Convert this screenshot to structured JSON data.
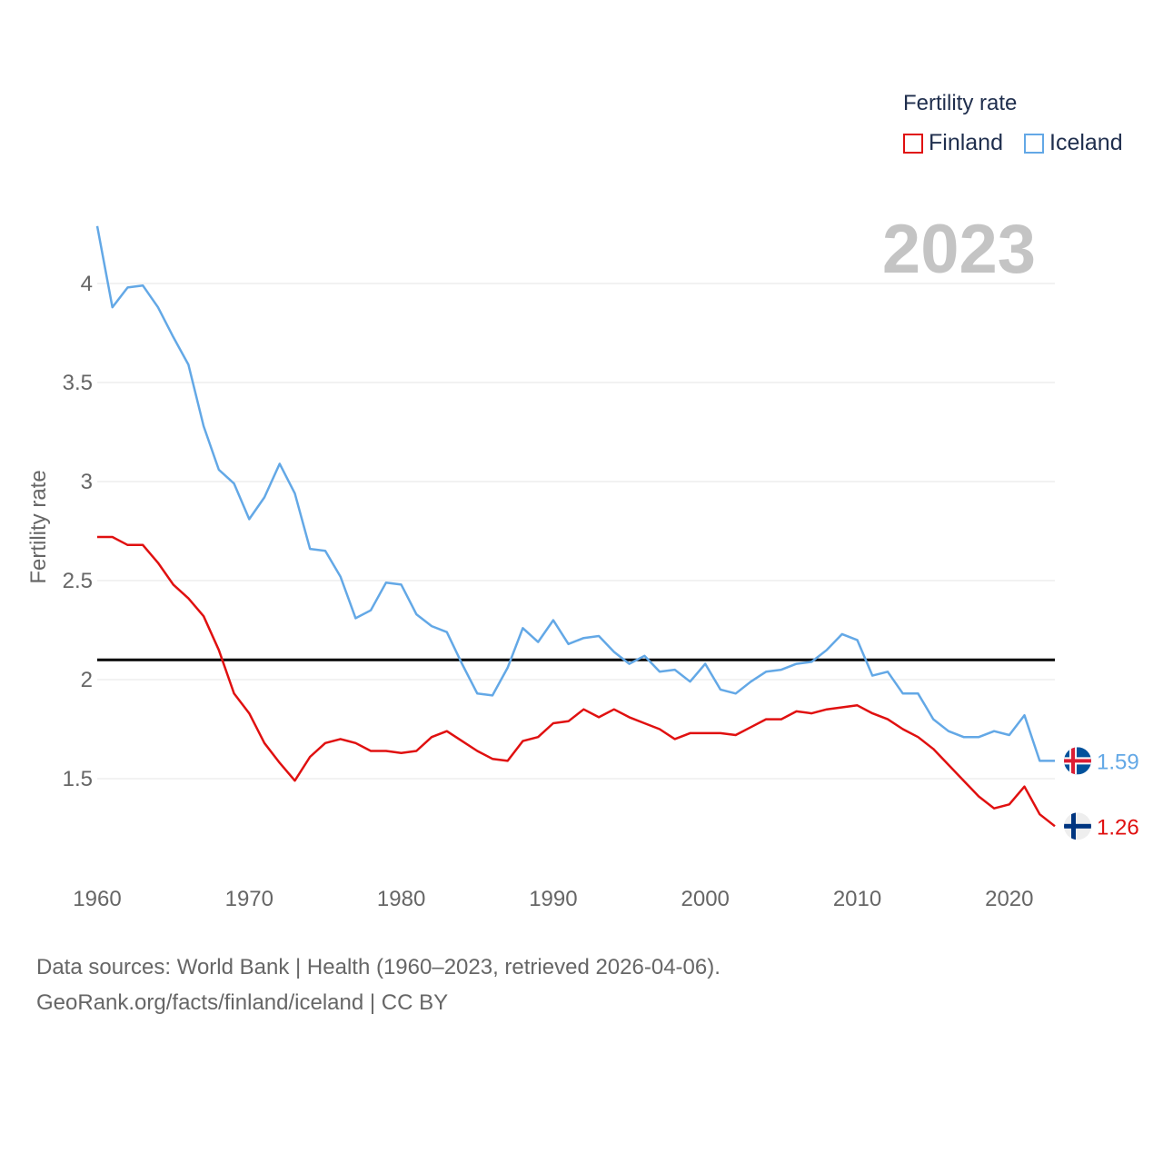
{
  "legend": {
    "title": "Fertility rate",
    "items": [
      {
        "label": "Finland",
        "color": "#e01010"
      },
      {
        "label": "Iceland",
        "color": "#63a8e6"
      }
    ]
  },
  "year_label": "2023",
  "footer": {
    "line1": "Data sources: World Bank | Health (1960–2023, retrieved 2026-04-06).",
    "line2": "GeoRank.org/facts/finland/iceland | CC BY"
  },
  "chart_data": {
    "type": "line",
    "ylabel": "Fertility rate",
    "xlabel": "",
    "xlim": [
      1960,
      2023
    ],
    "ylim": [
      1.2,
      4.3
    ],
    "x_ticks": [
      1960,
      1970,
      1980,
      1990,
      2000,
      2010,
      2020
    ],
    "y_ticks": [
      1.5,
      2,
      2.5,
      3,
      3.5,
      4
    ],
    "y_tick_labels": [
      "1.5",
      "2",
      "2.5",
      "3",
      "3.5",
      "4"
    ],
    "reference_line": 2.1,
    "x": [
      1960,
      1961,
      1962,
      1963,
      1964,
      1965,
      1966,
      1967,
      1968,
      1969,
      1970,
      1971,
      1972,
      1973,
      1974,
      1975,
      1976,
      1977,
      1978,
      1979,
      1980,
      1981,
      1982,
      1983,
      1984,
      1985,
      1986,
      1987,
      1988,
      1989,
      1990,
      1991,
      1992,
      1993,
      1994,
      1995,
      1996,
      1997,
      1998,
      1999,
      2000,
      2001,
      2002,
      2003,
      2004,
      2005,
      2006,
      2007,
      2008,
      2009,
      2010,
      2011,
      2012,
      2013,
      2014,
      2015,
      2016,
      2017,
      2018,
      2019,
      2020,
      2021,
      2022,
      2023
    ],
    "series": [
      {
        "name": "Finland",
        "color": "#e01010",
        "end_label": "1.26",
        "values": [
          2.72,
          2.72,
          2.68,
          2.68,
          2.59,
          2.48,
          2.41,
          2.32,
          2.15,
          1.93,
          1.83,
          1.68,
          1.58,
          1.49,
          1.61,
          1.68,
          1.7,
          1.68,
          1.64,
          1.64,
          1.63,
          1.64,
          1.71,
          1.74,
          1.69,
          1.64,
          1.6,
          1.59,
          1.69,
          1.71,
          1.78,
          1.79,
          1.85,
          1.81,
          1.85,
          1.81,
          1.78,
          1.75,
          1.7,
          1.73,
          1.73,
          1.73,
          1.72,
          1.76,
          1.8,
          1.8,
          1.84,
          1.83,
          1.85,
          1.86,
          1.87,
          1.83,
          1.8,
          1.75,
          1.71,
          1.65,
          1.57,
          1.49,
          1.41,
          1.35,
          1.37,
          1.46,
          1.32,
          1.26
        ]
      },
      {
        "name": "Iceland",
        "color": "#63a8e6",
        "end_label": "1.59",
        "values": [
          4.29,
          3.88,
          3.98,
          3.99,
          3.88,
          3.73,
          3.59,
          3.28,
          3.06,
          2.99,
          2.81,
          2.92,
          3.09,
          2.94,
          2.66,
          2.65,
          2.52,
          2.31,
          2.35,
          2.49,
          2.48,
          2.33,
          2.27,
          2.24,
          2.08,
          1.93,
          1.92,
          2.06,
          2.26,
          2.19,
          2.3,
          2.18,
          2.21,
          2.22,
          2.14,
          2.08,
          2.12,
          2.04,
          2.05,
          1.99,
          2.08,
          1.95,
          1.93,
          1.99,
          2.04,
          2.05,
          2.08,
          2.09,
          2.15,
          2.23,
          2.2,
          2.02,
          2.04,
          1.93,
          1.93,
          1.8,
          1.74,
          1.71,
          1.71,
          1.74,
          1.72,
          1.82,
          1.59,
          1.59
        ]
      }
    ]
  }
}
